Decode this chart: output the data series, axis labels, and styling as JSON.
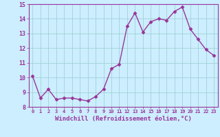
{
  "x": [
    0,
    1,
    2,
    3,
    4,
    5,
    6,
    7,
    8,
    9,
    10,
    11,
    12,
    13,
    14,
    15,
    16,
    17,
    18,
    19,
    20,
    21,
    22,
    23
  ],
  "y": [
    10.1,
    8.6,
    9.2,
    8.5,
    8.6,
    8.6,
    8.5,
    8.4,
    8.7,
    9.2,
    10.6,
    10.9,
    13.5,
    14.4,
    13.1,
    13.8,
    14.0,
    13.9,
    14.5,
    14.8,
    13.3,
    12.6,
    11.9,
    11.5
  ],
  "xlabel": "Windchill (Refroidissement éolien,°C)",
  "xlim": [
    -0.5,
    23.5
  ],
  "ylim": [
    8,
    15
  ],
  "yticks": [
    8,
    9,
    10,
    11,
    12,
    13,
    14,
    15
  ],
  "xticks": [
    0,
    1,
    2,
    3,
    4,
    5,
    6,
    7,
    8,
    9,
    10,
    11,
    12,
    13,
    14,
    15,
    16,
    17,
    18,
    19,
    20,
    21,
    22,
    23
  ],
  "line_color": "#993399",
  "marker": "D",
  "marker_size": 2.5,
  "bg_color": "#cceeff",
  "grid_color": "#99cccc",
  "label_color": "#993399",
  "tick_color": "#993399",
  "spine_color": "#993399",
  "tick_fontsize": 5.0,
  "ytick_fontsize": 6.0,
  "xlabel_fontsize": 6.5,
  "linewidth": 1.0
}
